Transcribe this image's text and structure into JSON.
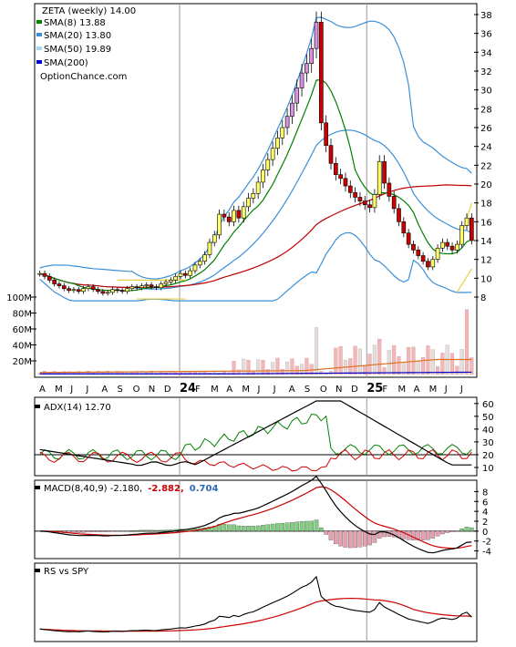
{
  "colors": {
    "sma8": "#008000",
    "sma20": "#3b8fd8",
    "sma50": "#c00000",
    "sma200": "#0000cc",
    "up_candle": "#ffff66",
    "down_candle": "#cc0000",
    "adx": "#000000",
    "dip": "#008000",
    "dim": "#cc0000",
    "macd": "#000000",
    "signal": "#cc0000",
    "hist_pos": "#7fcf7f",
    "hist_neg": "#e6a0b0",
    "volume": "#f2b8b8"
  },
  "price_panel": {
    "title": "ZETA (weekly) 14.00",
    "legend": [
      {
        "label": "SMA(8) 13.88",
        "color": "#008000"
      },
      {
        "label": "SMA(20) 13.80",
        "color": "#3b8fd8"
      },
      {
        "label": "SMA(50) 19.89",
        "color": "#c00000"
      },
      {
        "label": "SMA(200)",
        "color": "#0000cc"
      }
    ],
    "source": "OptionChance.com"
  },
  "adx_panel": {
    "label": "ADX(14) 12.70"
  },
  "macd_panel": {
    "label": "MACD(8,40,9) -2.180,",
    "value1": "-2.882,",
    "value2": "0.704"
  },
  "rs_panel": {
    "label": "RS vs SPY"
  },
  "x_axis": {
    "months": [
      "A",
      "M",
      "J",
      "J",
      "A",
      "S",
      "O",
      "N",
      "D",
      "24",
      "F",
      "M",
      "A",
      "M",
      "J",
      "J",
      "A",
      "S",
      "O",
      "N",
      "D",
      "25",
      "F",
      "M",
      "A",
      "M",
      "J",
      "J"
    ]
  },
  "chart_data": [
    {
      "type": "candlestick",
      "title": "ZETA (weekly) 14.00",
      "ylim": [
        7,
        39
      ],
      "y_ticks": [
        8,
        10,
        12,
        14,
        16,
        18,
        20,
        22,
        24,
        26,
        28,
        30,
        32,
        34,
        36,
        38
      ],
      "volume_ticks": [
        "100M",
        "80M",
        "60M",
        "40M",
        "20M"
      ],
      "close_approx": [
        10.5,
        10.2,
        9.8,
        9.4,
        9.2,
        8.9,
        8.7,
        8.8,
        8.6,
        8.9,
        9.1,
        8.8,
        8.6,
        8.4,
        8.5,
        8.8,
        8.7,
        8.6,
        8.9,
        9.1,
        9.0,
        9.2,
        9.3,
        9.1,
        9.0,
        9.4,
        9.6,
        9.8,
        10.2,
        10.5,
        10.3,
        10.8,
        11.4,
        11.8,
        12.5,
        13.8,
        14.6,
        16.8,
        16.5,
        16.0,
        17.2,
        16.4,
        17.6,
        18.5,
        19.0,
        20.2,
        21.5,
        22.6,
        23.8,
        24.9,
        26.0,
        27.2,
        28.6,
        30.2,
        31.8,
        32.8,
        34.4,
        37.2,
        26.5,
        24.1,
        22.2,
        21.0,
        20.6,
        19.8,
        19.1,
        18.6,
        18.2,
        17.8,
        17.5,
        18.9,
        22.4,
        20.1,
        18.7,
        17.4,
        16.0,
        14.8,
        13.6,
        13.0,
        12.4,
        11.8,
        11.2,
        12.0,
        13.2,
        13.8,
        13.4,
        13.0,
        13.6,
        15.6,
        16.4,
        14.0
      ]
    },
    {
      "type": "line",
      "name": "ADX(14)",
      "ylim": [
        5,
        62
      ],
      "y_ticks": [
        10,
        20,
        30,
        40,
        50,
        60
      ]
    },
    {
      "type": "line",
      "name": "MACD(8,40,9)",
      "ylim": [
        -5,
        9
      ],
      "y_ticks": [
        8,
        6,
        4,
        2,
        0,
        -2,
        -4
      ]
    },
    {
      "type": "line",
      "name": "RS vs SPY"
    }
  ]
}
